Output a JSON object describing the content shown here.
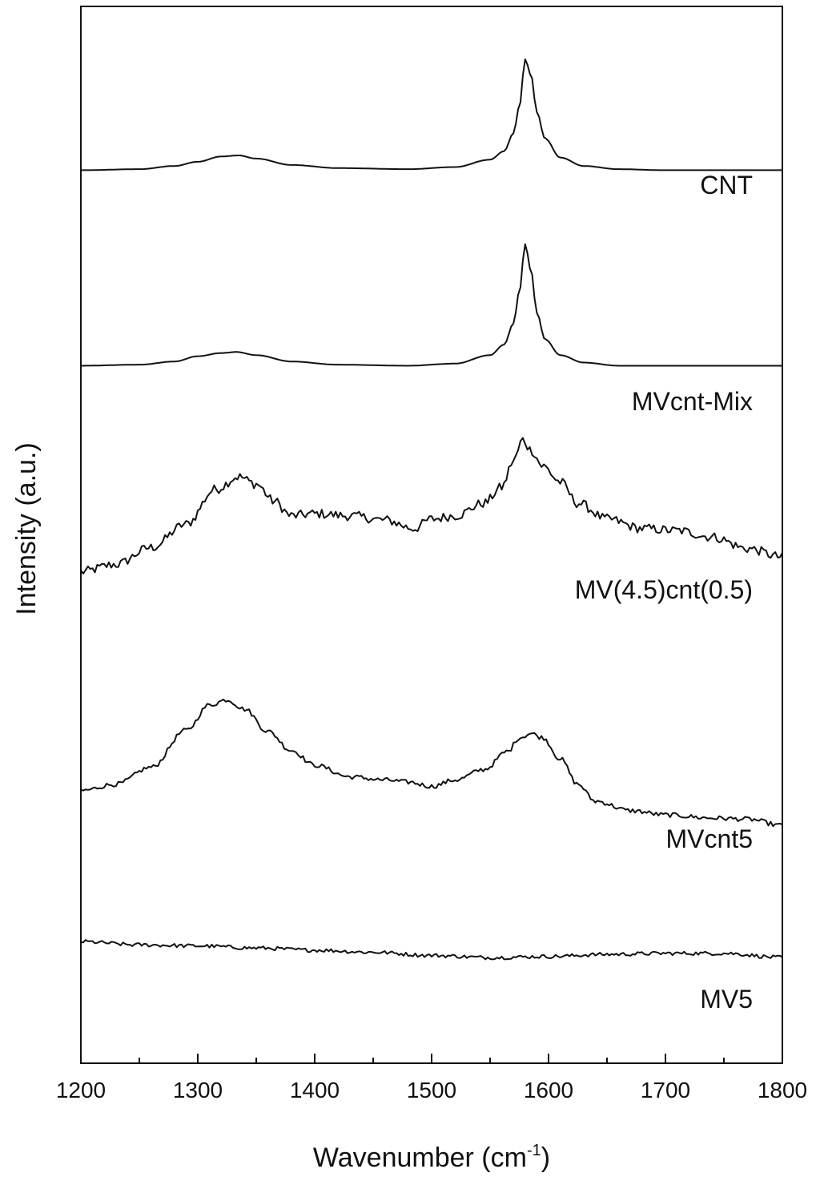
{
  "chart_data": {
    "type": "line",
    "title": "",
    "xlabel": "Wavenumber (cm",
    "xlabel_sup": "-1",
    "xlabel_close": ")",
    "ylabel": "Intensity (a.u.)",
    "xlim": [
      1200,
      1800
    ],
    "ylim": [
      0,
      100
    ],
    "x_ticks": [
      1200,
      1300,
      1400,
      1500,
      1600,
      1700,
      1800
    ],
    "x_minor_ticks": [
      1250,
      1350,
      1450,
      1550,
      1650,
      1750
    ],
    "y_ticks": [],
    "grid": false,
    "legend": "labels placed under each trace at right",
    "series": [
      {
        "name": "CNT",
        "x": [
          1200,
          1250,
          1280,
          1300,
          1320,
          1335,
          1350,
          1380,
          1420,
          1480,
          1520,
          1550,
          1562,
          1570,
          1575,
          1580,
          1585,
          1590,
          1597,
          1610,
          1630,
          1660,
          1700,
          1750,
          1800
        ],
        "values": [
          84.5,
          84.6,
          84.9,
          85.3,
          85.8,
          85.9,
          85.6,
          85.0,
          84.7,
          84.6,
          84.8,
          85.5,
          86.3,
          88.0,
          90.5,
          95.0,
          93.5,
          90.0,
          87.5,
          85.7,
          84.9,
          84.6,
          84.5,
          84.5,
          84.5
        ]
      },
      {
        "name": "MVcnt-Mix",
        "x": [
          1200,
          1250,
          1280,
          1300,
          1320,
          1333,
          1350,
          1380,
          1420,
          1480,
          1520,
          1550,
          1562,
          1570,
          1575,
          1580,
          1585,
          1590,
          1597,
          1610,
          1630,
          1660,
          1700,
          1750,
          1800
        ],
        "values": [
          66.0,
          66.1,
          66.4,
          66.9,
          67.2,
          67.3,
          67.0,
          66.4,
          66.1,
          66.0,
          66.2,
          67.0,
          68.0,
          70.0,
          73.0,
          77.5,
          75.0,
          71.0,
          68.5,
          67.0,
          66.3,
          66.0,
          66.0,
          66.0,
          66.0
        ]
      },
      {
        "name": "MV(4.5)cnt(0.5)",
        "x": [
          1200,
          1230,
          1260,
          1290,
          1315,
          1335,
          1350,
          1365,
          1380,
          1400,
          1430,
          1460,
          1485,
          1500,
          1520,
          1545,
          1560,
          1570,
          1578,
          1585,
          1595,
          1610,
          1625,
          1650,
          1680,
          1710,
          1740,
          1770,
          1800
        ],
        "values": [
          46.5,
          47.2,
          48.8,
          51.0,
          54.3,
          55.5,
          54.8,
          53.2,
          51.8,
          52.0,
          51.8,
          51.4,
          50.6,
          51.5,
          51.8,
          53.0,
          54.5,
          57.0,
          59.0,
          58.0,
          56.5,
          55.0,
          53.0,
          51.5,
          50.6,
          50.4,
          49.8,
          48.7,
          47.9
        ]
      },
      {
        "name": "MVcnt5",
        "x": [
          1200,
          1230,
          1260,
          1290,
          1310,
          1325,
          1340,
          1360,
          1380,
          1400,
          1430,
          1460,
          1480,
          1500,
          1520,
          1545,
          1565,
          1575,
          1585,
          1595,
          1610,
          1625,
          1640,
          1670,
          1700,
          1740,
          1770,
          1800
        ],
        "values": [
          25.8,
          26.4,
          28.0,
          31.5,
          33.9,
          34.4,
          33.5,
          31.4,
          29.6,
          28.2,
          27.1,
          26.8,
          26.6,
          26.2,
          26.8,
          27.8,
          29.5,
          30.8,
          31.2,
          30.8,
          28.8,
          26.4,
          24.8,
          23.9,
          23.5,
          23.2,
          23.1,
          22.5
        ]
      },
      {
        "name": "MV5",
        "x": [
          1200,
          1250,
          1300,
          1350,
          1400,
          1450,
          1500,
          1550,
          1600,
          1650,
          1700,
          1750,
          1800
        ],
        "values": [
          11.5,
          11.2,
          11.1,
          10.9,
          10.7,
          10.5,
          10.2,
          10.0,
          10.1,
          10.3,
          10.4,
          10.4,
          10.0
        ]
      }
    ]
  }
}
